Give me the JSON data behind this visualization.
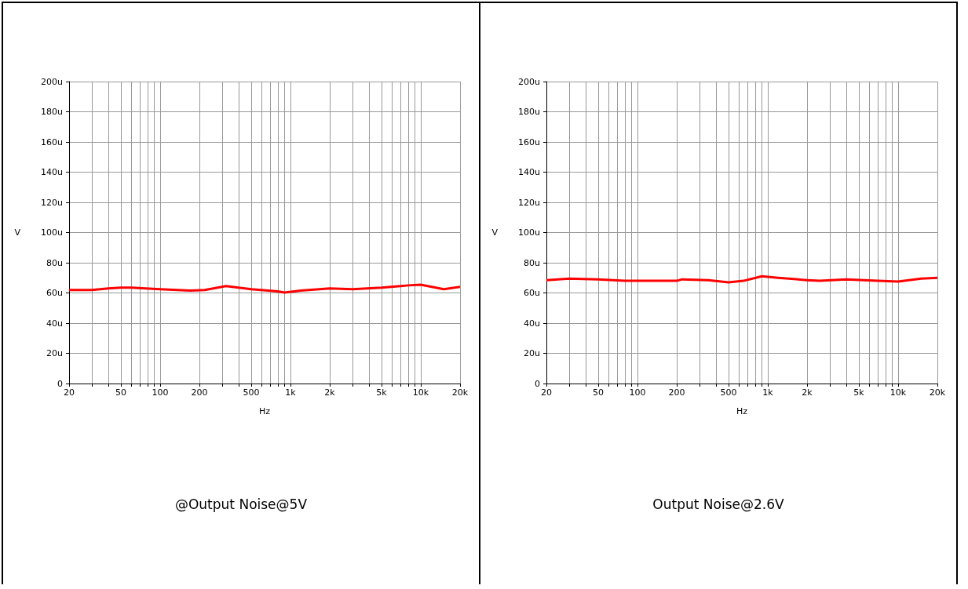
{
  "chart_data": [
    {
      "type": "line",
      "title": "@Output Noise@5V",
      "xlabel": "Hz",
      "ylabel": "V",
      "log": "x",
      "grid": true,
      "marker": "none",
      "line_style": "solid",
      "xlim": [
        20,
        20000
      ],
      "ylim": [
        0,
        200
      ],
      "xticks": [
        20,
        {
          "value": 30,
          "label": null
        },
        {
          "value": 40,
          "label": null
        },
        50,
        {
          "value": 60,
          "label": null
        },
        {
          "value": 70,
          "label": null
        },
        {
          "value": 80,
          "label": null
        },
        {
          "value": 90,
          "label": null
        },
        100,
        200,
        {
          "value": 300,
          "label": null
        },
        {
          "value": 400,
          "label": null
        },
        500,
        {
          "value": 600,
          "label": null
        },
        {
          "value": 700,
          "label": null
        },
        {
          "value": 800,
          "label": null
        },
        {
          "value": 900,
          "label": null
        },
        {
          "value": 1000,
          "label": "1k"
        },
        {
          "value": 2000,
          "label": "2k"
        },
        {
          "value": 3000,
          "label": null
        },
        {
          "value": 4000,
          "label": null
        },
        {
          "value": 5000,
          "label": "5k"
        },
        {
          "value": 6000,
          "label": null
        },
        {
          "value": 7000,
          "label": null
        },
        {
          "value": 8000,
          "label": null
        },
        {
          "value": 9000,
          "label": null
        },
        {
          "value": 10000,
          "label": "10k"
        },
        {
          "value": 20000,
          "label": "20k"
        }
      ],
      "yticks": [
        0,
        {
          "value": 20,
          "label": "20u"
        },
        {
          "value": 40,
          "label": "40u"
        },
        {
          "value": 60,
          "label": "60u"
        },
        {
          "value": 80,
          "label": "80u"
        },
        {
          "value": 100,
          "label": "100u"
        },
        {
          "value": 120,
          "label": "120u"
        },
        {
          "value": 140,
          "label": "140u"
        },
        {
          "value": 160,
          "label": "160u"
        },
        {
          "value": 180,
          "label": "180u"
        },
        {
          "value": 200,
          "label": "200u"
        }
      ],
      "series": [
        {
          "color": "#ff0000",
          "x": [
            20,
            30,
            40,
            50,
            60,
            100,
            170,
            220,
            320,
            500,
            800,
            900,
            1200,
            2000,
            3000,
            5000,
            8000,
            10000,
            15000,
            20000
          ],
          "values": [
            62,
            62,
            63,
            63.5,
            63.5,
            62.5,
            61.5,
            62,
            64.5,
            62.5,
            61,
            60.3,
            61.5,
            63,
            62.5,
            63.5,
            65,
            65.5,
            62.5,
            64
          ]
        }
      ]
    },
    {
      "type": "line",
      "title": "Output Noise@2.6V",
      "xlabel": "Hz",
      "ylabel": "V",
      "log": "x",
      "grid": true,
      "marker": "none",
      "line_style": "solid",
      "xlim": [
        20,
        20000
      ],
      "ylim": [
        0,
        200
      ],
      "xticks": [
        20,
        {
          "value": 30,
          "label": null
        },
        {
          "value": 40,
          "label": null
        },
        50,
        {
          "value": 60,
          "label": null
        },
        {
          "value": 70,
          "label": null
        },
        {
          "value": 80,
          "label": null
        },
        {
          "value": 90,
          "label": null
        },
        100,
        200,
        {
          "value": 300,
          "label": null
        },
        {
          "value": 400,
          "label": null
        },
        500,
        {
          "value": 600,
          "label": null
        },
        {
          "value": 700,
          "label": null
        },
        {
          "value": 800,
          "label": null
        },
        {
          "value": 900,
          "label": null
        },
        {
          "value": 1000,
          "label": "1k"
        },
        {
          "value": 2000,
          "label": "2k"
        },
        {
          "value": 3000,
          "label": null
        },
        {
          "value": 4000,
          "label": null
        },
        {
          "value": 5000,
          "label": "5k"
        },
        {
          "value": 6000,
          "label": null
        },
        {
          "value": 7000,
          "label": null
        },
        {
          "value": 8000,
          "label": null
        },
        {
          "value": 9000,
          "label": null
        },
        {
          "value": 10000,
          "label": "10k"
        },
        {
          "value": 20000,
          "label": "20k"
        }
      ],
      "yticks": [
        0,
        {
          "value": 20,
          "label": "20u"
        },
        {
          "value": 40,
          "label": "40u"
        },
        {
          "value": 60,
          "label": "60u"
        },
        {
          "value": 80,
          "label": "80u"
        },
        {
          "value": 100,
          "label": "100u"
        },
        {
          "value": 120,
          "label": "120u"
        },
        {
          "value": 140,
          "label": "140u"
        },
        {
          "value": 160,
          "label": "160u"
        },
        {
          "value": 180,
          "label": "180u"
        },
        {
          "value": 200,
          "label": "200u"
        }
      ],
      "series": [
        {
          "color": "#ff0000",
          "x": [
            20,
            30,
            50,
            80,
            200,
            220,
            350,
            500,
            650,
            900,
            1200,
            2000,
            2500,
            4000,
            7000,
            10000,
            15000,
            20000
          ],
          "values": [
            68.5,
            69.5,
            69,
            68,
            68,
            69,
            68.5,
            67,
            68,
            71,
            70,
            68.5,
            68,
            69,
            68,
            67.5,
            69.5,
            70
          ]
        }
      ]
    }
  ]
}
